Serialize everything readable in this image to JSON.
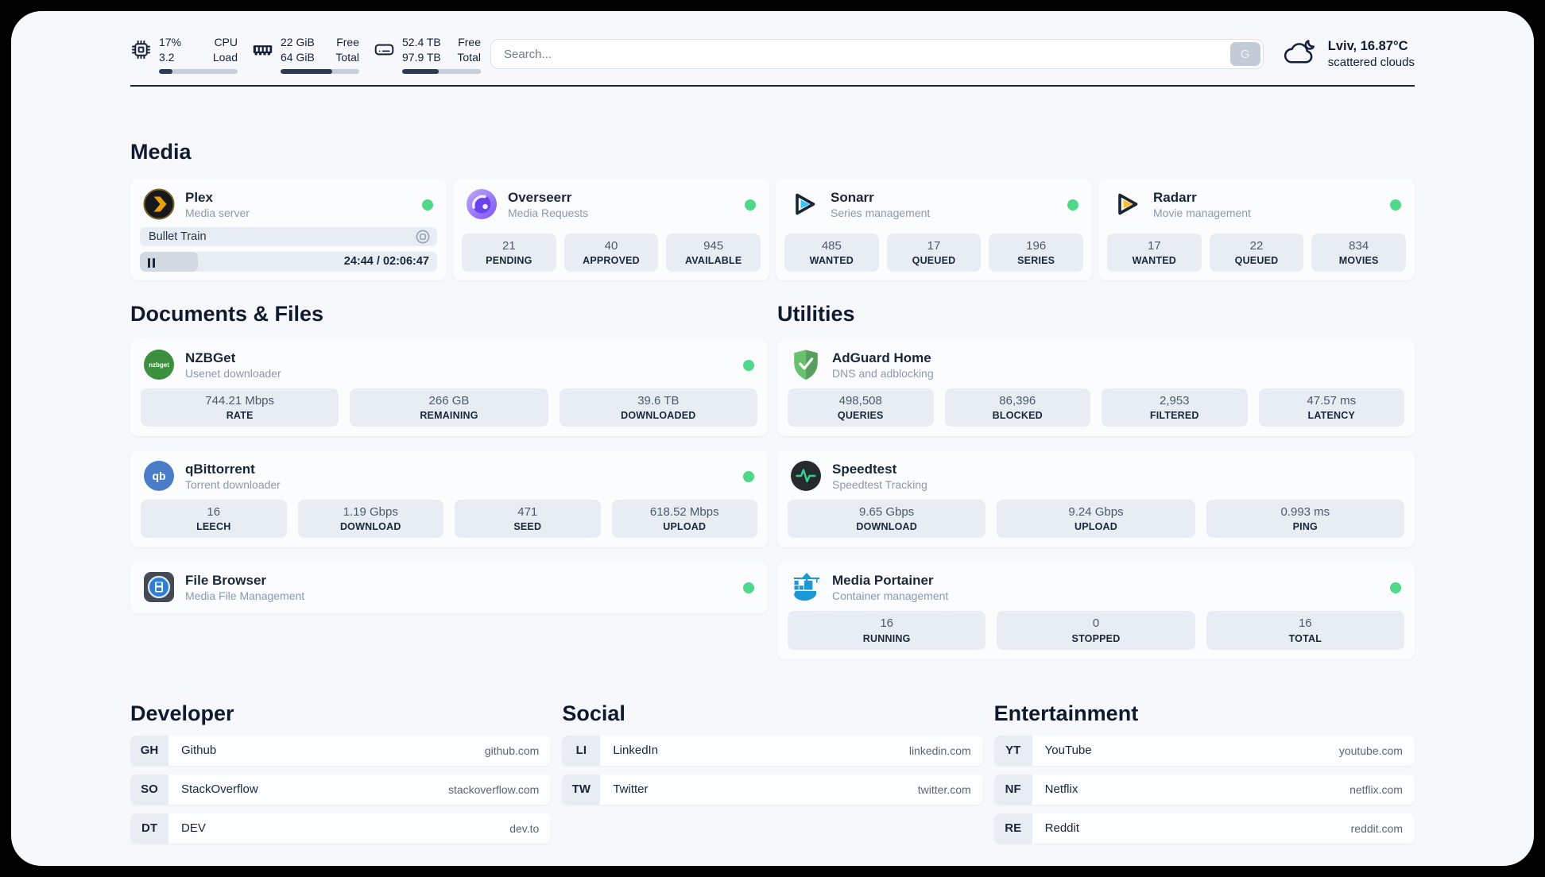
{
  "topbar": {
    "metrics": [
      {
        "name": "cpu",
        "col1": [
          "17%",
          "3.2"
        ],
        "col2": [
          "CPU",
          "Load"
        ],
        "progress": 17
      },
      {
        "name": "memory",
        "col1": [
          "22 GiB",
          "64 GiB"
        ],
        "col2": [
          "Free",
          "Total"
        ],
        "progress": 66
      },
      {
        "name": "disk",
        "col1": [
          "52.4 TB",
          "97.9 TB"
        ],
        "col2": [
          "Free",
          "Total"
        ],
        "progress": 46
      }
    ],
    "search": {
      "placeholder": "Search...",
      "button": "G"
    },
    "weather": {
      "location": "Lviv, 16.87°C",
      "condition": "scattered clouds"
    }
  },
  "media": {
    "title": "Media",
    "plex": {
      "name": "Plex",
      "desc": "Media server",
      "now_playing": "Bullet Train",
      "time": "24:44 / 02:06:47",
      "progress": 19.5
    },
    "overseerr": {
      "name": "Overseerr",
      "desc": "Media Requests",
      "stats": [
        {
          "value": "21",
          "label": "PENDING"
        },
        {
          "value": "40",
          "label": "APPROVED"
        },
        {
          "value": "945",
          "label": "AVAILABLE"
        }
      ]
    },
    "sonarr": {
      "name": "Sonarr",
      "desc": "Series management",
      "stats": [
        {
          "value": "485",
          "label": "WANTED"
        },
        {
          "value": "17",
          "label": "QUEUED"
        },
        {
          "value": "196",
          "label": "SERIES"
        }
      ]
    },
    "radarr": {
      "name": "Radarr",
      "desc": "Movie management",
      "stats": [
        {
          "value": "17",
          "label": "WANTED"
        },
        {
          "value": "22",
          "label": "QUEUED"
        },
        {
          "value": "834",
          "label": "MOVIES"
        }
      ]
    }
  },
  "documents": {
    "title": "Documents & Files",
    "nzbget": {
      "name": "NZBGet",
      "desc": "Usenet downloader",
      "icon_text": "nzbget",
      "stats": [
        {
          "value": "744.21 Mbps",
          "label": "RATE"
        },
        {
          "value": "266 GB",
          "label": "REMAINING"
        },
        {
          "value": "39.6 TB",
          "label": "DOWNLOADED"
        }
      ]
    },
    "qbittorrent": {
      "name": "qBittorrent",
      "desc": "Torrent downloader",
      "icon_text": "qb",
      "stats": [
        {
          "value": "16",
          "label": "LEECH"
        },
        {
          "value": "1.19 Gbps",
          "label": "DOWNLOAD"
        },
        {
          "value": "471",
          "label": "SEED"
        },
        {
          "value": "618.52 Mbps",
          "label": "UPLOAD"
        }
      ]
    },
    "filebrowser": {
      "name": "File Browser",
      "desc": "Media File Management"
    }
  },
  "utilities": {
    "title": "Utilities",
    "adguard": {
      "name": "AdGuard Home",
      "desc": "DNS and adblocking",
      "stats": [
        {
          "value": "498,508",
          "label": "QUERIES"
        },
        {
          "value": "86,396",
          "label": "BLOCKED"
        },
        {
          "value": "2,953",
          "label": "FILTERED"
        },
        {
          "value": "47.57 ms",
          "label": "LATENCY"
        }
      ]
    },
    "speedtest": {
      "name": "Speedtest",
      "desc": "Speedtest Tracking",
      "stats": [
        {
          "value": "9.65 Gbps",
          "label": "DOWNLOAD"
        },
        {
          "value": "9.24 Gbps",
          "label": "UPLOAD"
        },
        {
          "value": "0.993 ms",
          "label": "PING"
        }
      ]
    },
    "portainer": {
      "name": "Media Portainer",
      "desc": "Container management",
      "stats": [
        {
          "value": "16",
          "label": "RUNNING"
        },
        {
          "value": "0",
          "label": "STOPPED"
        },
        {
          "value": "16",
          "label": "TOTAL"
        }
      ]
    }
  },
  "bookmarks": {
    "developer": {
      "title": "Developer",
      "items": [
        {
          "abbr": "GH",
          "name": "Github",
          "url": "github.com"
        },
        {
          "abbr": "SO",
          "name": "StackOverflow",
          "url": "stackoverflow.com"
        },
        {
          "abbr": "DT",
          "name": "DEV",
          "url": "dev.to"
        }
      ]
    },
    "social": {
      "title": "Social",
      "items": [
        {
          "abbr": "LI",
          "name": "LinkedIn",
          "url": "linkedin.com"
        },
        {
          "abbr": "TW",
          "name": "Twitter",
          "url": "twitter.com"
        }
      ]
    },
    "entertainment": {
      "title": "Entertainment",
      "items": [
        {
          "abbr": "YT",
          "name": "YouTube",
          "url": "youtube.com"
        },
        {
          "abbr": "NF",
          "name": "Netflix",
          "url": "netflix.com"
        },
        {
          "abbr": "RE",
          "name": "Reddit",
          "url": "reddit.com"
        }
      ]
    }
  },
  "colors": {
    "status_online": "#4fd88a",
    "accent_navy": "#16203a",
    "stat_box": "#e8edf4"
  }
}
